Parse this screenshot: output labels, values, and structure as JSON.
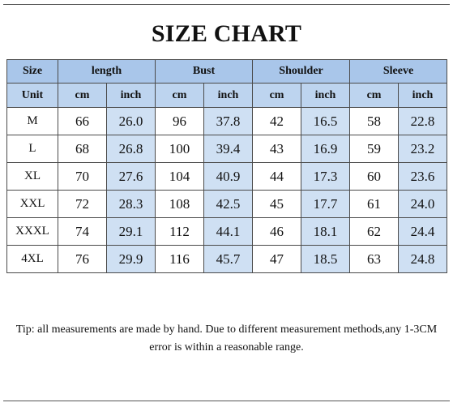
{
  "title": "SIZE CHART",
  "header": {
    "size_label": "Size",
    "unit_label": "Unit",
    "groups": [
      "length",
      "Bust",
      "Shoulder",
      "Sleeve"
    ],
    "units": [
      "cm",
      "inch",
      "cm",
      "inch",
      "cm",
      "inch",
      "cm",
      "inch"
    ]
  },
  "rows": [
    {
      "size": "M",
      "values": [
        "66",
        "26.0",
        "96",
        "37.8",
        "42",
        "16.5",
        "58",
        "22.8"
      ]
    },
    {
      "size": "L",
      "values": [
        "68",
        "26.8",
        "100",
        "39.4",
        "43",
        "16.9",
        "59",
        "23.2"
      ]
    },
    {
      "size": "XL",
      "values": [
        "70",
        "27.6",
        "104",
        "40.9",
        "44",
        "17.3",
        "60",
        "23.6"
      ]
    },
    {
      "size": "XXL",
      "values": [
        "72",
        "28.3",
        "108",
        "42.5",
        "45",
        "17.7",
        "61",
        "24.0"
      ]
    },
    {
      "size": "XXXL",
      "values": [
        "74",
        "29.1",
        "112",
        "44.1",
        "46",
        "18.1",
        "62",
        "24.4"
      ]
    },
    {
      "size": "4XL",
      "values": [
        "76",
        "29.9",
        "116",
        "45.7",
        "47",
        "18.5",
        "63",
        "24.8"
      ]
    }
  ],
  "tip": "Tip: all measurements are made by hand. Due to different measurement methods,any 1-3CM error is within a reasonable range.",
  "colors": {
    "header_primary": "#a9c6ea",
    "header_secondary": "#bdd4ef",
    "cm_column_shade": "#cfe0f3",
    "border": "#4a4a4a"
  }
}
